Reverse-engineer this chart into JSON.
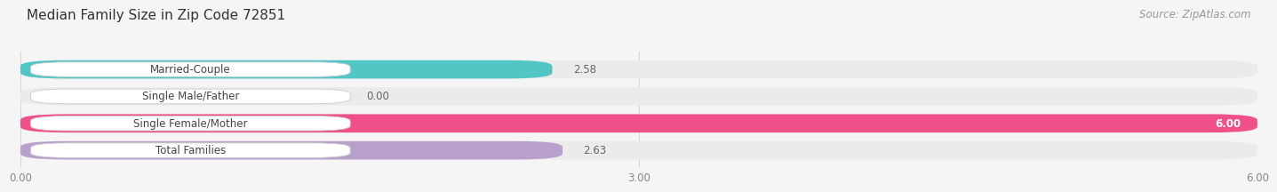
{
  "title": "Median Family Size in Zip Code 72851",
  "source": "Source: ZipAtlas.com",
  "categories": [
    "Married-Couple",
    "Single Male/Father",
    "Single Female/Mother",
    "Total Families"
  ],
  "values": [
    2.58,
    0.0,
    6.0,
    2.63
  ],
  "bar_colors": [
    "#52c5c5",
    "#a0aee8",
    "#f0508a",
    "#b8a0cc"
  ],
  "bar_bg_color": "#ebebeb",
  "label_values": [
    "2.58",
    "0.00",
    "6.00",
    "2.63"
  ],
  "xlim_max": 6.0,
  "xticks": [
    0.0,
    3.0,
    6.0
  ],
  "xtick_labels": [
    "0.00",
    "3.00",
    "6.00"
  ],
  "background_color": "#f5f5f5",
  "title_fontsize": 11,
  "source_fontsize": 8.5,
  "bar_label_fontsize": 8.5,
  "category_fontsize": 8.5,
  "tick_fontsize": 8.5,
  "grid_color": "#d8d8d8"
}
